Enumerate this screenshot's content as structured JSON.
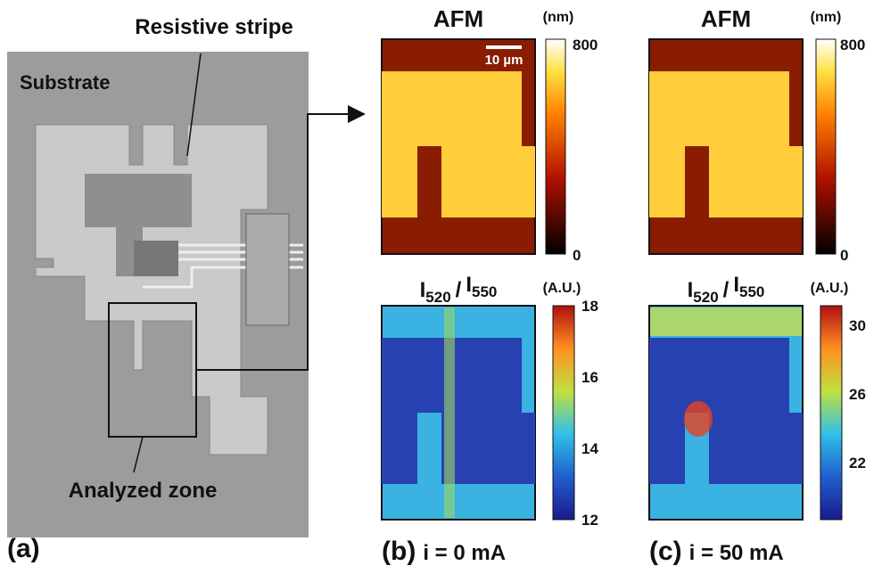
{
  "panel_a": {
    "label": "(a)",
    "substrate": "Substrate",
    "stripe": "Resistive stripe",
    "zone": "Analyzed zone"
  },
  "panel_b": {
    "label": "(b)",
    "condition": "i = 0 mA",
    "afm_title": "AFM",
    "afm_unit": "(nm)",
    "scale_bar": "10 µm",
    "afm_ticks": [
      800,
      0
    ],
    "ratio_title": {
      "a": "I",
      "a_sub": "520",
      "sep": "/",
      "b": "I",
      "b_sub": "550"
    },
    "ratio_unit": "(A.U.)",
    "ratio_ticks": [
      18,
      16,
      14,
      12
    ]
  },
  "panel_c": {
    "label": "(c)",
    "condition": "i = 50 mA",
    "afm_title": "AFM",
    "afm_unit": "(nm)",
    "afm_ticks": [
      800,
      0
    ],
    "ratio_title": {
      "a": "I",
      "a_sub": "520",
      "sep": "/",
      "b": "I",
      "b_sub": "550"
    },
    "ratio_unit": "(A.U.)",
    "ratio_ticks": [
      30,
      26,
      22
    ]
  }
}
